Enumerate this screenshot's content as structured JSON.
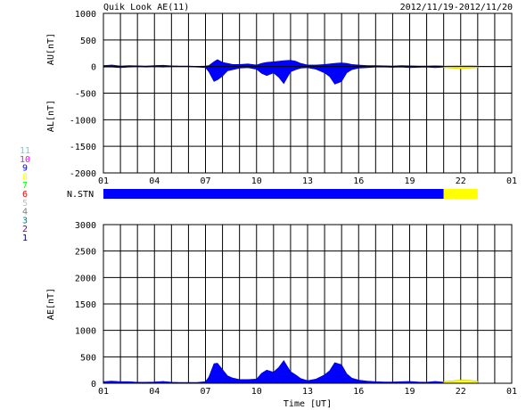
{
  "header": {
    "title": "Quik Look AE(11)",
    "date_range": "2012/11/19-2012/11/20"
  },
  "stations": {
    "label": "N.STN",
    "legend": [
      {
        "num": "11",
        "color": "#00ffff"
      },
      {
        "num": "10",
        "color": "#ff00ff"
      },
      {
        "num": "9",
        "color": "#0000ff"
      },
      {
        "num": "8",
        "color": "#ffff00"
      },
      {
        "num": "7",
        "color": "#00ff00"
      },
      {
        "num": "6",
        "color": "#ff0000"
      },
      {
        "num": "5",
        "color": "#c0c0c0"
      },
      {
        "num": "4",
        "color": "#808080"
      },
      {
        "num": "3",
        "color": "#008080"
      },
      {
        "num": "2",
        "color": "#800080"
      },
      {
        "num": "1",
        "color": "#000080"
      }
    ],
    "segments": [
      {
        "start": 0,
        "end": 20,
        "color": "#0000ff"
      },
      {
        "start": 20,
        "end": 22,
        "color": "#ffff00"
      }
    ]
  },
  "chart_data": [
    {
      "type": "area",
      "ylabel_upper": "AU[nT]",
      "ylabel_lower": "AL[nT]",
      "ylim": [
        -2000,
        1000
      ],
      "yticks": [
        1000,
        500,
        0,
        -500,
        -1000,
        -1500,
        -2000
      ],
      "xlim": [
        0,
        24
      ],
      "xticks": [
        "01",
        "04",
        "07",
        "10",
        "13",
        "16",
        "19",
        "22",
        "01"
      ],
      "series": [
        {
          "color": "#0000ff",
          "x": [
            0,
            0.5,
            1,
            1.5,
            2,
            2.5,
            3,
            3.5,
            4,
            4.5,
            5,
            5.5,
            6,
            6.2,
            6.5,
            6.7,
            7,
            7.3,
            7.6,
            8,
            8.5,
            9,
            9.3,
            9.6,
            10,
            10.3,
            10.6,
            11,
            11.3,
            11.6,
            12,
            12.5,
            13,
            13.3,
            13.6,
            14,
            14.3,
            14.6,
            15,
            15.5,
            16,
            16.5,
            17,
            17.5,
            18,
            18.5,
            19,
            19.5,
            20
          ],
          "au": [
            20,
            30,
            10,
            20,
            15,
            10,
            20,
            25,
            15,
            10,
            10,
            5,
            10,
            20,
            90,
            130,
            80,
            60,
            40,
            40,
            50,
            30,
            60,
            80,
            90,
            100,
            110,
            120,
            100,
            60,
            30,
            30,
            40,
            50,
            60,
            70,
            60,
            40,
            30,
            20,
            20,
            15,
            10,
            20,
            15,
            10,
            10,
            15,
            10
          ],
          "al": [
            -10,
            -10,
            -20,
            -10,
            -5,
            -10,
            -5,
            -10,
            -5,
            -5,
            -5,
            -10,
            -20,
            -100,
            -280,
            -250,
            -180,
            -80,
            -60,
            -30,
            -20,
            -50,
            -130,
            -170,
            -120,
            -200,
            -320,
            -100,
            -60,
            -30,
            -20,
            -50,
            -120,
            -190,
            -330,
            -280,
            -120,
            -60,
            -30,
            -20,
            -10,
            -10,
            -15,
            -10,
            -20,
            -15,
            -10,
            -20,
            -10
          ]
        },
        {
          "color": "#ffff00",
          "x": [
            20,
            20.5,
            21,
            21.5,
            22
          ],
          "au": [
            10,
            15,
            20,
            25,
            20
          ],
          "al": [
            -20,
            -30,
            -40,
            -30,
            -20
          ]
        }
      ]
    },
    {
      "type": "area",
      "ylabel": "AE[nT]",
      "xlabel": "Time [UT]",
      "ylim": [
        0,
        3000
      ],
      "yticks": [
        3000,
        2500,
        2000,
        1500,
        1000,
        500,
        0
      ],
      "xlim": [
        0,
        24
      ],
      "xticks": [
        "01",
        "04",
        "07",
        "10",
        "13",
        "16",
        "19",
        "22",
        "01"
      ],
      "series": [
        {
          "color": "#0000ff",
          "x": [
            0,
            0.5,
            1,
            1.5,
            2,
            2.5,
            3,
            3.5,
            4,
            4.5,
            5,
            5.5,
            6,
            6.2,
            6.5,
            6.7,
            7,
            7.3,
            7.6,
            8,
            8.5,
            9,
            9.3,
            9.6,
            10,
            10.3,
            10.6,
            11,
            11.3,
            11.6,
            12,
            12.5,
            13,
            13.3,
            13.6,
            14,
            14.3,
            14.6,
            15,
            15.5,
            16,
            16.5,
            17,
            17.5,
            18,
            18.5,
            19,
            19.5,
            20
          ],
          "values": [
            30,
            40,
            30,
            30,
            20,
            20,
            25,
            35,
            20,
            15,
            15,
            15,
            30,
            120,
            370,
            380,
            260,
            140,
            100,
            70,
            70,
            80,
            190,
            250,
            210,
            300,
            430,
            220,
            160,
            90,
            50,
            80,
            160,
            240,
            390,
            350,
            180,
            100,
            60,
            40,
            30,
            25,
            25,
            30,
            35,
            25,
            20,
            35,
            20
          ]
        },
        {
          "color": "#ffff00",
          "x": [
            20,
            20.5,
            21,
            21.5,
            22
          ],
          "values": [
            30,
            45,
            60,
            55,
            40
          ]
        }
      ]
    }
  ]
}
